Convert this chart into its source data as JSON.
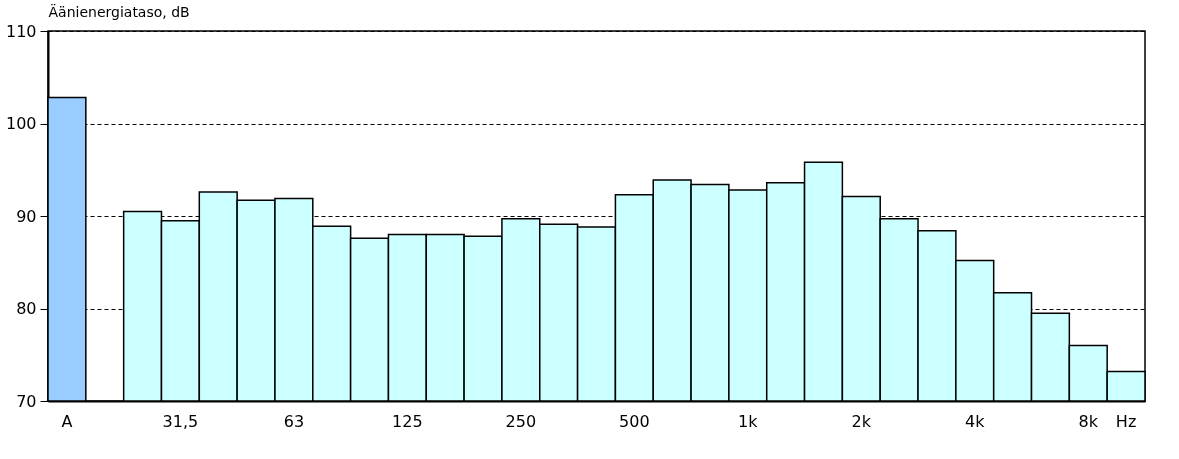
{
  "chart_data": {
    "type": "bar",
    "ylabel": "Äänienergiataso, dB",
    "categories": [
      "A",
      null,
      null,
      "31,5",
      null,
      null,
      "63",
      null,
      null,
      "125",
      null,
      null,
      "250",
      null,
      null,
      "500",
      null,
      null,
      "1k",
      null,
      null,
      "2k",
      null,
      null,
      "4k",
      null,
      null,
      "8k",
      "Hz"
    ],
    "values": [
      102.8,
      null,
      90.5,
      89.5,
      92.6,
      91.7,
      91.9,
      88.9,
      87.6,
      88.0,
      88.0,
      87.8,
      89.7,
      89.1,
      88.8,
      92.3,
      93.9,
      93.4,
      92.8,
      93.6,
      95.8,
      92.1,
      89.7,
      88.4,
      85.2,
      81.7,
      79.5,
      76.0,
      73.2
    ],
    "colors": [
      "#99ccff",
      null,
      "#ccffff",
      "#ccffff",
      "#ccffff",
      "#ccffff",
      "#ccffff",
      "#ccffff",
      "#ccffff",
      "#ccffff",
      "#ccffff",
      "#ccffff",
      "#ccffff",
      "#ccffff",
      "#ccffff",
      "#ccffff",
      "#ccffff",
      "#ccffff",
      "#ccffff",
      "#ccffff",
      "#ccffff",
      "#ccffff",
      "#ccffff",
      "#ccffff",
      "#ccffff",
      "#ccffff",
      "#ccffff",
      "#ccffff",
      "#ccffff"
    ],
    "ylim": [
      70,
      110
    ],
    "yticks": [
      70,
      80,
      90,
      100,
      110
    ],
    "grid": "y",
    "line_style": "dashed",
    "legend": false
  }
}
